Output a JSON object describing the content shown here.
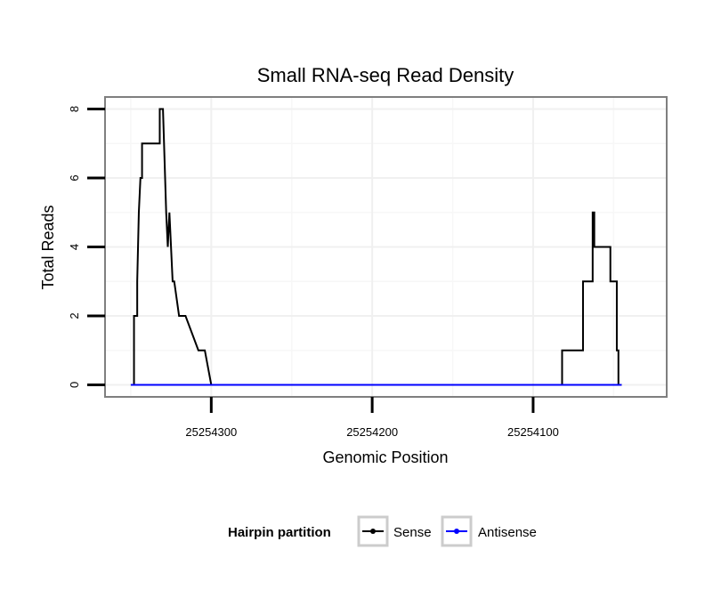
{
  "chart_data": {
    "type": "line",
    "title": "Small RNA-seq Read Density",
    "xlabel": "Genomic Position",
    "ylabel": "Total Reads",
    "x_reversed": true,
    "xlim": [
      25254017,
      25254366
    ],
    "ylim": [
      -0.35,
      8.35
    ],
    "x_ticks": [
      25254300,
      25254200,
      25254100
    ],
    "x_tick_labels": [
      "25254300",
      "25254200",
      "25254100"
    ],
    "y_ticks": [
      0,
      2,
      4,
      6,
      8
    ],
    "y_tick_labels": [
      "0",
      "2",
      "4",
      "6",
      "8"
    ],
    "grid": true,
    "legend": {
      "title": "Hairpin partition",
      "position": "bottom",
      "entries": [
        "Sense",
        "Antisense"
      ]
    },
    "colors": {
      "Sense": "#000000",
      "Antisense": "#0000ff"
    },
    "series": [
      {
        "name": "Sense",
        "color": "#000000",
        "x": [
          25254350,
          25254348,
          25254348,
          25254346,
          25254346,
          25254345,
          25254344,
          25254343,
          25254343,
          25254341,
          25254341,
          25254332,
          25254332,
          25254330,
          25254328,
          25254328,
          25254327,
          25254327,
          25254326,
          25254326,
          25254324,
          25254324,
          25254323,
          25254323,
          25254320,
          25254320,
          25254316,
          25254316,
          25254308,
          25254308,
          25254304,
          25254304,
          25254300,
          25254300,
          25254250,
          25254200,
          25254150,
          25254100,
          25254082,
          25254082,
          25254069,
          25254069,
          25254063,
          25254063,
          25254062,
          25254062,
          25254052,
          25254052,
          25254048,
          25254048,
          25254047,
          25254047,
          25254045
        ],
        "y": [
          0,
          0,
          2,
          2,
          3,
          5,
          6,
          6,
          7,
          7,
          7,
          7,
          8,
          8,
          5,
          5,
          4,
          4,
          5,
          5,
          3,
          3,
          3,
          3,
          2,
          2,
          2,
          2,
          1,
          1,
          1,
          1,
          0,
          0,
          0,
          0,
          0,
          0,
          0,
          1,
          1,
          3,
          3,
          5,
          5,
          4,
          4,
          3,
          3,
          1,
          1,
          0,
          0
        ]
      },
      {
        "name": "Antisense",
        "color": "#0000ff",
        "x": [
          25254350,
          25254300,
          25254250,
          25254200,
          25254150,
          25254100,
          25254045
        ],
        "y": [
          0,
          0,
          0,
          0,
          0,
          0,
          0
        ]
      }
    ]
  }
}
